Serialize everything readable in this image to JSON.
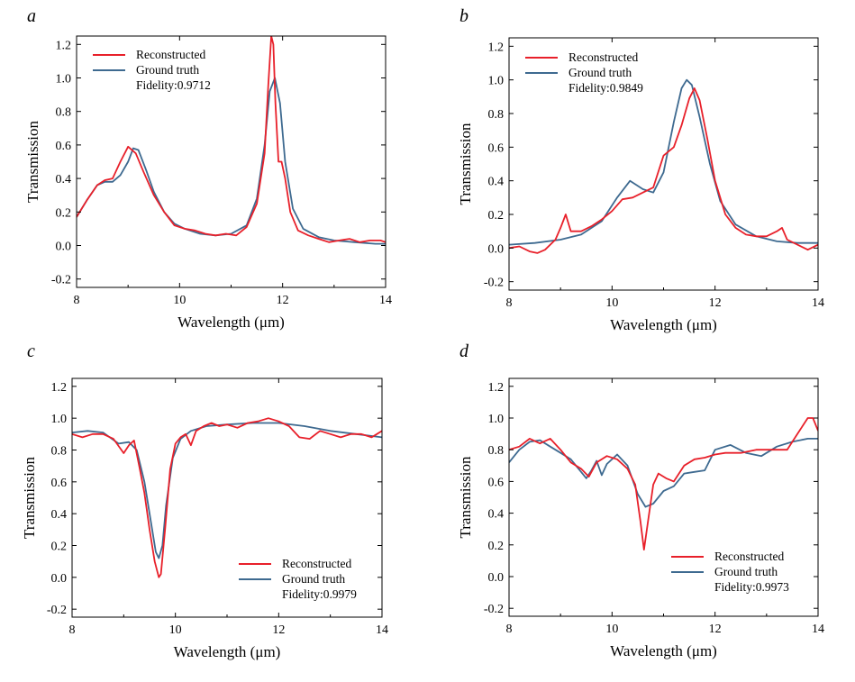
{
  "figure": {
    "panels": [
      "a",
      "b",
      "c",
      "d"
    ]
  },
  "colors": {
    "reconstructed": "#e8202a",
    "ground_truth": "#3e6a90",
    "axis": "#000000"
  },
  "chart_data": [
    {
      "panel": "a",
      "type": "line",
      "xlabel": "Wavelength (μm)",
      "ylabel": "Transmission",
      "xlim": [
        8,
        14
      ],
      "ylim": [
        -0.25,
        1.25
      ],
      "xticks": [
        8,
        10,
        12,
        14
      ],
      "yticks": [
        -0.2,
        0.0,
        0.2,
        0.4,
        0.6,
        0.8,
        1.0,
        1.2
      ],
      "legend": {
        "position": "top-left",
        "entries": [
          "Reconstructed",
          "Ground truth"
        ],
        "note": "Fidelity:0.9712"
      },
      "series": [
        {
          "name": "Reconstructed",
          "color": "#e8202a",
          "x": [
            8.0,
            8.2,
            8.4,
            8.55,
            8.7,
            8.85,
            9.0,
            9.15,
            9.3,
            9.5,
            9.7,
            9.9,
            10.1,
            10.3,
            10.5,
            10.7,
            10.9,
            11.1,
            11.3,
            11.5,
            11.65,
            11.72,
            11.78,
            11.82,
            11.86,
            11.92,
            11.98,
            12.05,
            12.15,
            12.3,
            12.5,
            12.7,
            12.9,
            13.1,
            13.3,
            13.5,
            13.7,
            13.9,
            14.0
          ],
          "y": [
            0.17,
            0.27,
            0.36,
            0.39,
            0.4,
            0.5,
            0.59,
            0.55,
            0.44,
            0.3,
            0.2,
            0.12,
            0.1,
            0.09,
            0.07,
            0.06,
            0.07,
            0.06,
            0.11,
            0.25,
            0.55,
            0.95,
            1.25,
            1.2,
            0.85,
            0.5,
            0.5,
            0.4,
            0.2,
            0.09,
            0.06,
            0.04,
            0.02,
            0.03,
            0.04,
            0.02,
            0.03,
            0.03,
            0.02
          ]
        },
        {
          "name": "Ground truth",
          "color": "#3e6a90",
          "x": [
            8.0,
            8.2,
            8.4,
            8.55,
            8.7,
            8.85,
            9.0,
            9.1,
            9.2,
            9.35,
            9.5,
            9.7,
            9.9,
            10.1,
            10.4,
            10.7,
            11.0,
            11.3,
            11.5,
            11.65,
            11.75,
            11.85,
            11.95,
            12.05,
            12.2,
            12.4,
            12.7,
            13.0,
            13.4,
            13.8,
            14.0
          ],
          "y": [
            0.17,
            0.27,
            0.36,
            0.38,
            0.38,
            0.42,
            0.5,
            0.58,
            0.57,
            0.45,
            0.32,
            0.2,
            0.13,
            0.1,
            0.07,
            0.06,
            0.07,
            0.12,
            0.28,
            0.6,
            0.92,
            1.0,
            0.85,
            0.5,
            0.22,
            0.1,
            0.05,
            0.03,
            0.02,
            0.01,
            0.01
          ]
        }
      ]
    },
    {
      "panel": "b",
      "type": "line",
      "xlabel": "Wavelength (μm)",
      "ylabel": "Transmission",
      "xlim": [
        8,
        14
      ],
      "ylim": [
        -0.25,
        1.25
      ],
      "xticks": [
        8,
        10,
        12,
        14
      ],
      "yticks": [
        -0.2,
        0.0,
        0.2,
        0.4,
        0.6,
        0.8,
        1.0,
        1.2
      ],
      "legend": {
        "position": "top-left",
        "entries": [
          "Reconstructed",
          "Ground truth"
        ],
        "note": "Fidelity:0.9849"
      },
      "series": [
        {
          "name": "Reconstructed",
          "color": "#e8202a",
          "x": [
            8.0,
            8.2,
            8.4,
            8.55,
            8.7,
            8.9,
            9.0,
            9.1,
            9.2,
            9.4,
            9.6,
            9.8,
            10.0,
            10.2,
            10.4,
            10.6,
            10.8,
            11.0,
            11.2,
            11.35,
            11.5,
            11.6,
            11.7,
            11.85,
            12.0,
            12.2,
            12.4,
            12.6,
            12.8,
            13.0,
            13.2,
            13.3,
            13.4,
            13.6,
            13.8,
            14.0
          ],
          "y": [
            0.0,
            0.01,
            -0.02,
            -0.03,
            -0.01,
            0.05,
            0.12,
            0.2,
            0.1,
            0.1,
            0.13,
            0.17,
            0.22,
            0.29,
            0.3,
            0.33,
            0.36,
            0.55,
            0.6,
            0.73,
            0.89,
            0.95,
            0.88,
            0.65,
            0.4,
            0.2,
            0.12,
            0.08,
            0.07,
            0.07,
            0.1,
            0.12,
            0.05,
            0.02,
            -0.01,
            0.02
          ]
        },
        {
          "name": "Ground truth",
          "color": "#3e6a90",
          "x": [
            8.0,
            8.5,
            9.0,
            9.4,
            9.8,
            10.1,
            10.35,
            10.6,
            10.8,
            11.0,
            11.2,
            11.35,
            11.45,
            11.55,
            11.7,
            11.9,
            12.1,
            12.4,
            12.8,
            13.2,
            13.6,
            14.0
          ],
          "y": [
            0.02,
            0.03,
            0.05,
            0.08,
            0.16,
            0.3,
            0.4,
            0.35,
            0.33,
            0.45,
            0.75,
            0.95,
            1.0,
            0.97,
            0.78,
            0.5,
            0.28,
            0.14,
            0.07,
            0.04,
            0.03,
            0.03
          ]
        }
      ]
    },
    {
      "panel": "c",
      "type": "line",
      "xlabel": "Wavelength (μm)",
      "ylabel": "Transmission",
      "xlim": [
        8,
        14
      ],
      "ylim": [
        -0.25,
        1.25
      ],
      "xticks": [
        8,
        10,
        12,
        14
      ],
      "yticks": [
        -0.2,
        0.0,
        0.2,
        0.4,
        0.6,
        0.8,
        1.0,
        1.2
      ],
      "legend": {
        "position": "bottom-right",
        "entries": [
          "Reconstructed",
          "Ground truth"
        ],
        "note": "Fidelity:0.9979"
      },
      "series": [
        {
          "name": "Reconstructed",
          "color": "#e8202a",
          "x": [
            8.0,
            8.2,
            8.4,
            8.6,
            8.8,
            9.0,
            9.1,
            9.2,
            9.3,
            9.4,
            9.5,
            9.6,
            9.68,
            9.72,
            9.8,
            9.9,
            10.0,
            10.1,
            10.2,
            10.3,
            10.4,
            10.55,
            10.7,
            10.85,
            11.0,
            11.2,
            11.4,
            11.6,
            11.8,
            12.0,
            12.2,
            12.4,
            12.6,
            12.8,
            13.0,
            13.2,
            13.4,
            13.6,
            13.8,
            13.9,
            14.0
          ],
          "y": [
            0.9,
            0.88,
            0.9,
            0.9,
            0.87,
            0.78,
            0.83,
            0.86,
            0.7,
            0.53,
            0.3,
            0.1,
            0.0,
            0.02,
            0.3,
            0.68,
            0.84,
            0.88,
            0.9,
            0.83,
            0.92,
            0.95,
            0.97,
            0.95,
            0.96,
            0.94,
            0.97,
            0.98,
            1.0,
            0.98,
            0.95,
            0.88,
            0.87,
            0.92,
            0.9,
            0.88,
            0.9,
            0.9,
            0.88,
            0.9,
            0.92
          ]
        },
        {
          "name": "Ground truth",
          "color": "#3e6a90",
          "x": [
            8.0,
            8.3,
            8.6,
            8.9,
            9.1,
            9.25,
            9.4,
            9.55,
            9.62,
            9.68,
            9.75,
            9.82,
            9.95,
            10.1,
            10.3,
            10.6,
            11.0,
            11.5,
            12.0,
            12.5,
            13.0,
            13.5,
            14.0
          ],
          "y": [
            0.91,
            0.92,
            0.91,
            0.84,
            0.85,
            0.8,
            0.6,
            0.3,
            0.16,
            0.12,
            0.2,
            0.45,
            0.75,
            0.87,
            0.92,
            0.95,
            0.96,
            0.97,
            0.97,
            0.95,
            0.92,
            0.9,
            0.88
          ]
        }
      ]
    },
    {
      "panel": "d",
      "type": "line",
      "xlabel": "Wavelength (μm)",
      "ylabel": "Transmission",
      "xlim": [
        8,
        14
      ],
      "ylim": [
        -0.25,
        1.25
      ],
      "xticks": [
        8,
        10,
        12,
        14
      ],
      "yticks": [
        -0.2,
        0.0,
        0.2,
        0.4,
        0.6,
        0.8,
        1.0,
        1.2
      ],
      "legend": {
        "position": "bottom-right",
        "entries": [
          "Reconstructed",
          "Ground truth"
        ],
        "note": "Fidelity:0.9973"
      },
      "series": [
        {
          "name": "Reconstructed",
          "color": "#e8202a",
          "x": [
            8.0,
            8.2,
            8.4,
            8.6,
            8.8,
            9.0,
            9.2,
            9.4,
            9.55,
            9.7,
            9.9,
            10.1,
            10.3,
            10.45,
            10.55,
            10.62,
            10.7,
            10.8,
            10.9,
            11.05,
            11.2,
            11.4,
            11.6,
            11.8,
            12.0,
            12.2,
            12.5,
            12.8,
            13.1,
            13.4,
            13.6,
            13.8,
            13.9,
            14.0
          ],
          "y": [
            0.8,
            0.82,
            0.87,
            0.84,
            0.87,
            0.8,
            0.72,
            0.68,
            0.63,
            0.72,
            0.76,
            0.74,
            0.68,
            0.58,
            0.35,
            0.17,
            0.35,
            0.58,
            0.65,
            0.62,
            0.6,
            0.7,
            0.74,
            0.75,
            0.77,
            0.78,
            0.78,
            0.8,
            0.8,
            0.8,
            0.9,
            1.0,
            1.0,
            0.92
          ]
        },
        {
          "name": "Ground truth",
          "color": "#3e6a90",
          "x": [
            8.0,
            8.2,
            8.4,
            8.6,
            8.8,
            9.0,
            9.2,
            9.4,
            9.5,
            9.6,
            9.7,
            9.8,
            9.9,
            10.1,
            10.3,
            10.5,
            10.65,
            10.8,
            11.0,
            11.2,
            11.4,
            11.6,
            11.8,
            12.0,
            12.3,
            12.6,
            12.9,
            13.2,
            13.5,
            13.8,
            14.0
          ],
          "y": [
            0.72,
            0.8,
            0.85,
            0.86,
            0.82,
            0.78,
            0.74,
            0.66,
            0.62,
            0.67,
            0.73,
            0.64,
            0.71,
            0.77,
            0.7,
            0.52,
            0.44,
            0.46,
            0.54,
            0.57,
            0.65,
            0.66,
            0.67,
            0.8,
            0.83,
            0.78,
            0.76,
            0.82,
            0.85,
            0.87,
            0.87
          ]
        }
      ]
    }
  ]
}
